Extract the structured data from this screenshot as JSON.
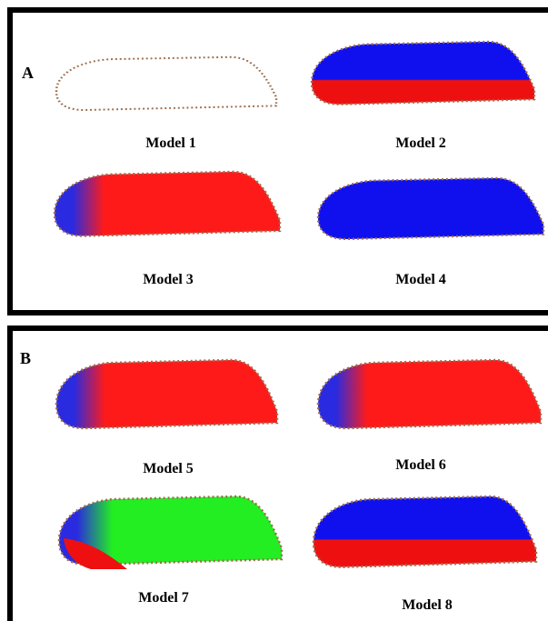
{
  "panels": [
    {
      "label": "A",
      "models": [
        "Model 1",
        "Model 2",
        "Model 3",
        "Model 4"
      ]
    },
    {
      "label": "B",
      "models": [
        "Model 5",
        "Model 6",
        "Model 7",
        "Model 8"
      ]
    }
  ]
}
